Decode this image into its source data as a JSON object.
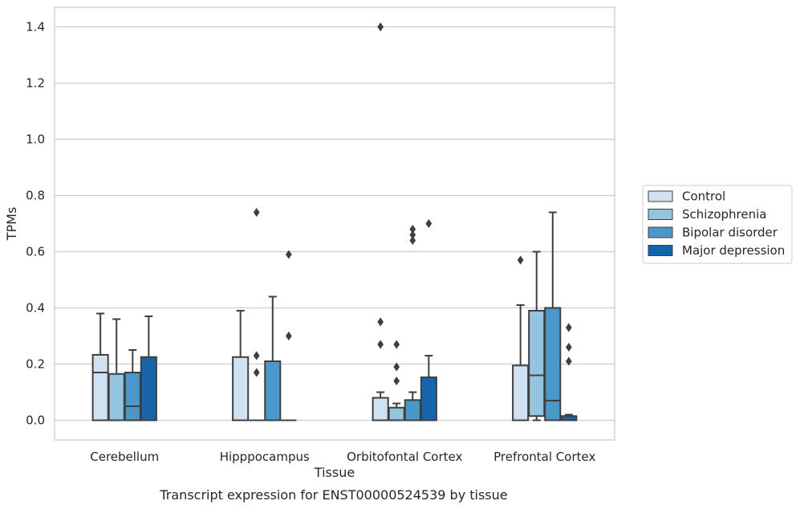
{
  "chart_data": {
    "type": "box",
    "title": "",
    "caption": "Transcript expression for ENST00000524539 by tissue",
    "xlabel": "Tissue",
    "ylabel": "TPMs",
    "ylim": [
      -0.07,
      1.47
    ],
    "yticks": [
      0.0,
      0.2,
      0.4,
      0.6,
      0.8,
      1.0,
      1.2,
      1.4
    ],
    "ytick_labels": [
      "0.0",
      "0.2",
      "0.4",
      "0.6",
      "0.8",
      "1.0",
      "1.2",
      "1.4"
    ],
    "categories": [
      "Cerebellum",
      "Hipppocampus",
      "Orbitofontal Cortex",
      "Prefrontal Cortex"
    ],
    "grid": true,
    "legend_position": "right",
    "series": [
      {
        "name": "Control",
        "color": "#d0e1f2",
        "boxes": [
          {
            "whislo": 0.0,
            "q1": 0.0,
            "med": 0.17,
            "q3": 0.233,
            "whishi": 0.38,
            "fliers": []
          },
          {
            "whislo": 0.0,
            "q1": 0.0,
            "med": 0.0,
            "q3": 0.225,
            "whishi": 0.39,
            "fliers": []
          },
          {
            "whislo": 0.0,
            "q1": 0.0,
            "med": 0.0,
            "q3": 0.08,
            "whishi": 0.1,
            "fliers": [
              0.27,
              0.35,
              1.4
            ]
          },
          {
            "whislo": 0.0,
            "q1": 0.0,
            "med": 0.0,
            "q3": 0.195,
            "whishi": 0.41,
            "fliers": [
              0.57
            ]
          }
        ]
      },
      {
        "name": "Schizophrenia",
        "color": "#94c4df",
        "boxes": [
          {
            "whislo": 0.0,
            "q1": 0.0,
            "med": 0.0,
            "q3": 0.165,
            "whishi": 0.36,
            "fliers": []
          },
          {
            "whislo": 0.0,
            "q1": 0.0,
            "med": 0.0,
            "q3": 0.0,
            "whishi": 0.0,
            "fliers": [
              0.17,
              0.23,
              0.74
            ]
          },
          {
            "whislo": 0.0,
            "q1": 0.0,
            "med": 0.0,
            "q3": 0.045,
            "whishi": 0.06,
            "fliers": [
              0.14,
              0.19,
              0.27
            ]
          },
          {
            "whislo": 0.0,
            "q1": 0.015,
            "med": 0.16,
            "q3": 0.39,
            "whishi": 0.6,
            "fliers": []
          }
        ]
      },
      {
        "name": "Bipolar disorder",
        "color": "#4a98c9",
        "boxes": [
          {
            "whislo": 0.0,
            "q1": 0.0,
            "med": 0.05,
            "q3": 0.17,
            "whishi": 0.25,
            "fliers": []
          },
          {
            "whislo": 0.0,
            "q1": 0.0,
            "med": 0.0,
            "q3": 0.21,
            "whishi": 0.44,
            "fliers": []
          },
          {
            "whislo": 0.0,
            "q1": 0.0,
            "med": 0.0,
            "q3": 0.072,
            "whishi": 0.1,
            "fliers": [
              0.64,
              0.66,
              0.68
            ]
          },
          {
            "whislo": 0.0,
            "q1": 0.0,
            "med": 0.07,
            "q3": 0.4,
            "whishi": 0.74,
            "fliers": []
          }
        ]
      },
      {
        "name": "Major depression",
        "color": "#1764ab",
        "boxes": [
          {
            "whislo": 0.0,
            "q1": 0.0,
            "med": 0.0,
            "q3": 0.225,
            "whishi": 0.37,
            "fliers": []
          },
          {
            "whislo": 0.0,
            "q1": 0.0,
            "med": 0.0,
            "q3": 0.0,
            "whishi": 0.0,
            "fliers": [
              0.3,
              0.59
            ]
          },
          {
            "whislo": 0.0,
            "q1": 0.0,
            "med": 0.0,
            "q3": 0.153,
            "whishi": 0.23,
            "fliers": [
              0.7
            ]
          },
          {
            "whislo": 0.0,
            "q1": 0.0,
            "med": 0.0,
            "q3": 0.015,
            "whishi": 0.02,
            "fliers": [
              0.21,
              0.26,
              0.33
            ]
          }
        ]
      }
    ]
  }
}
